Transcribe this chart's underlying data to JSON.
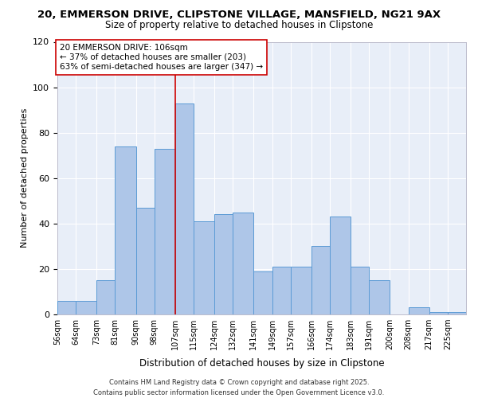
{
  "title_line1": "20, EMMERSON DRIVE, CLIPSTONE VILLAGE, MANSFIELD, NG21 9AX",
  "title_line2": "Size of property relative to detached houses in Clipstone",
  "xlabel": "Distribution of detached houses by size in Clipstone",
  "ylabel": "Number of detached properties",
  "footer_line1": "Contains HM Land Registry data © Crown copyright and database right 2025.",
  "footer_line2": "Contains public sector information licensed under the Open Government Licence v3.0.",
  "annotation_line1": "20 EMMERSON DRIVE: 106sqm",
  "annotation_line2": "← 37% of detached houses are smaller (203)",
  "annotation_line3": "63% of semi-detached houses are larger (347) →",
  "bin_labels": [
    "56sqm",
    "64sqm",
    "73sqm",
    "81sqm",
    "90sqm",
    "98sqm",
    "107sqm",
    "115sqm",
    "124sqm",
    "132sqm",
    "141sqm",
    "149sqm",
    "157sqm",
    "166sqm",
    "174sqm",
    "183sqm",
    "191sqm",
    "200sqm",
    "208sqm",
    "217sqm",
    "225sqm"
  ],
  "bin_edges": [
    56,
    64,
    73,
    81,
    90,
    98,
    107,
    115,
    124,
    132,
    141,
    149,
    157,
    166,
    174,
    183,
    191,
    200,
    208,
    217,
    225,
    233
  ],
  "counts": [
    6,
    6,
    15,
    74,
    47,
    73,
    93,
    41,
    44,
    45,
    19,
    21,
    21,
    30,
    43,
    21,
    15,
    0,
    3,
    1,
    1
  ],
  "bar_color": "#aec6e8",
  "bar_edge_color": "#5b9bd5",
  "vline_x": 107,
  "vline_color": "#cc0000",
  "annotation_box_color": "#ffffff",
  "annotation_box_edge_color": "#cc0000",
  "background_color": "#e8eef8",
  "ylim": [
    0,
    120
  ],
  "yticks": [
    0,
    20,
    40,
    60,
    80,
    100,
    120
  ]
}
